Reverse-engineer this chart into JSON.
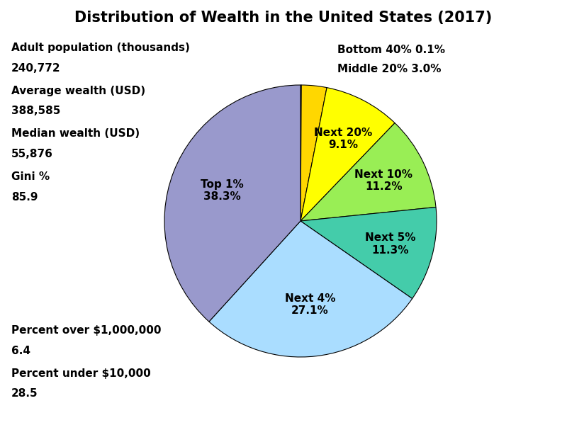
{
  "title": "Distribution of Wealth in the United States (2017)",
  "slices": [
    {
      "label": "Bottom 40%\n0.1%",
      "value": 0.1,
      "color": "#E87020",
      "text_label": "Bottom 40%\n0.1%"
    },
    {
      "label": "Middle 20%\n3.0%",
      "value": 3.0,
      "color": "#FFD700",
      "text_label": "Middle 20%\n3.0%"
    },
    {
      "label": "Next 20%\n9.1%",
      "value": 9.1,
      "color": "#FFFF00",
      "text_label": "Next 20%\n9.1%"
    },
    {
      "label": "Next 10%\n11.2%",
      "value": 11.2,
      "color": "#99EE55",
      "text_label": "Next 10%\n11.2%"
    },
    {
      "label": "Next 5%\n11.3%",
      "value": 11.3,
      "color": "#44CCAA",
      "text_label": "Next 5%\n11.3%"
    },
    {
      "label": "Next 4%\n27.1%",
      "value": 27.1,
      "color": "#AADDFF",
      "text_label": "Next 4%\n27.1%"
    },
    {
      "label": "Top 1%\n38.3%",
      "value": 38.3,
      "color": "#9999CC",
      "text_label": "Top 1%\n38.3%"
    }
  ],
  "annotations_left": [
    [
      "Adult population (thousands)",
      "240,772"
    ],
    [
      "Average wealth (USD)",
      "388,585"
    ],
    [
      "Median wealth (USD)",
      "55,876"
    ],
    [
      "Gini %",
      "85.9"
    ]
  ],
  "annotations_bottom_left": [
    [
      "Percent over $1,000,000",
      "6.4"
    ],
    [
      "Percent under $10,000",
      "28.5"
    ]
  ],
  "annotations_top_right": [
    "Bottom 40% 0.1%",
    "Middle 20% 3.0%"
  ],
  "background_color": "#FFFFFF",
  "title_fontsize": 15,
  "label_fontsize": 11,
  "annotation_fontsize": 11
}
